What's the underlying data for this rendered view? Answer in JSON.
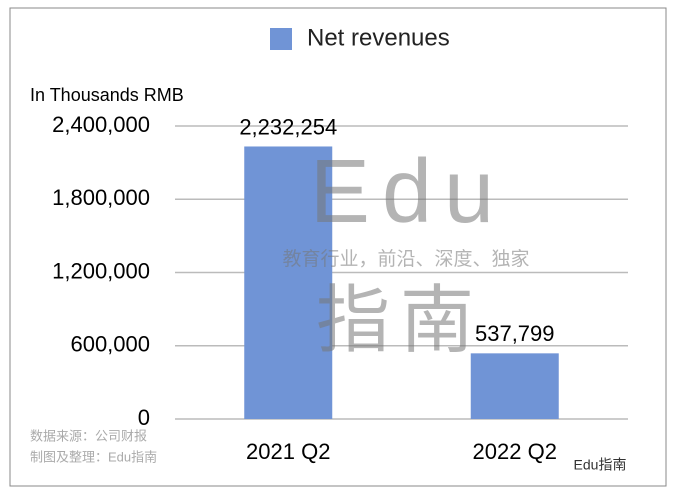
{
  "chart_data": {
    "type": "bar",
    "y_label": "In Thousands RMB",
    "categories": [
      "2021 Q2",
      "2022 Q2"
    ],
    "series": [
      {
        "name": "Net revenues",
        "color": "#7094d6",
        "values": [
          2232254,
          537799
        ],
        "value_labels": [
          "2,232,254",
          "537,799"
        ]
      }
    ],
    "ylim": [
      0,
      2400000
    ],
    "yticks": [
      0,
      {
        "value": 600000,
        "label": "600,000"
      },
      {
        "value": 1200000,
        "label": "1,200,000"
      },
      {
        "value": 1800000,
        "label": "1,800,000"
      },
      {
        "value": 2400000,
        "label": "2,400,000"
      }
    ],
    "grid": true,
    "legend": "top"
  },
  "watermark": {
    "logo": "Edu",
    "tagline": "教育行业，前沿、深度、独家",
    "name": "指南"
  },
  "source": [
    "数据来源：公司财报",
    "制图及整理：Edu指南"
  ],
  "account": "Edu指南"
}
